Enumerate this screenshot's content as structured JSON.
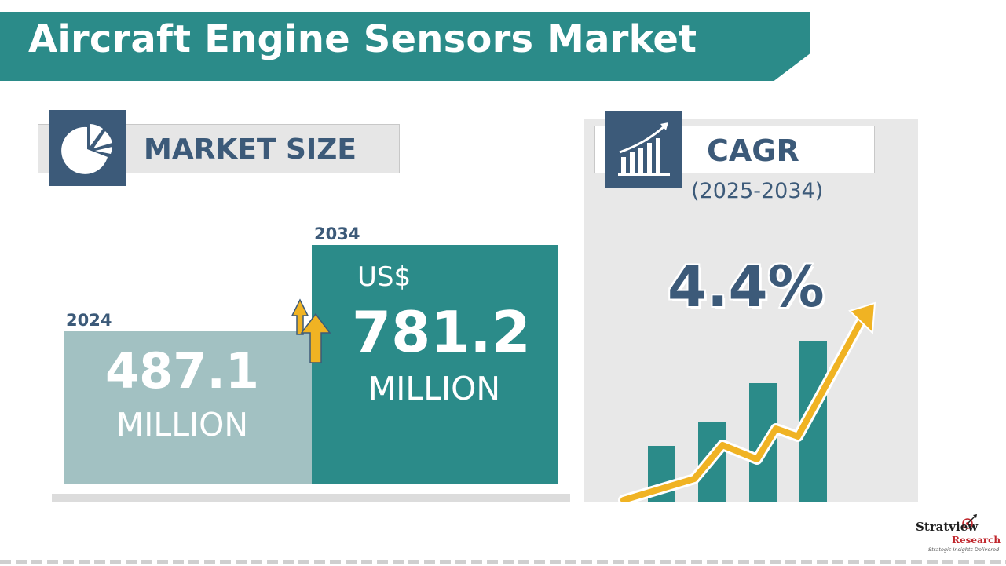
{
  "title": "Aircraft Engine Sensors Market",
  "market_size": {
    "label": "MARKET SIZE",
    "icon": "pie-chart-icon",
    "start": {
      "year": "2024",
      "value": "487.1",
      "unit": "MILLION"
    },
    "end": {
      "year": "2034",
      "currency": "US$",
      "value": "781.2",
      "unit": "MILLION"
    }
  },
  "cagr": {
    "label": "CAGR",
    "icon": "growth-bar-chart-icon",
    "period": "(2025-2034)",
    "value": "4.4%"
  },
  "logo": {
    "name": "Stratview",
    "sub": "Research",
    "tagline": "Strategic Insights Delivered"
  },
  "colors": {
    "teal": "#2b8b89",
    "light_teal": "#a2c1c2",
    "navy": "#3c5a79",
    "gold": "#f0b323"
  }
}
